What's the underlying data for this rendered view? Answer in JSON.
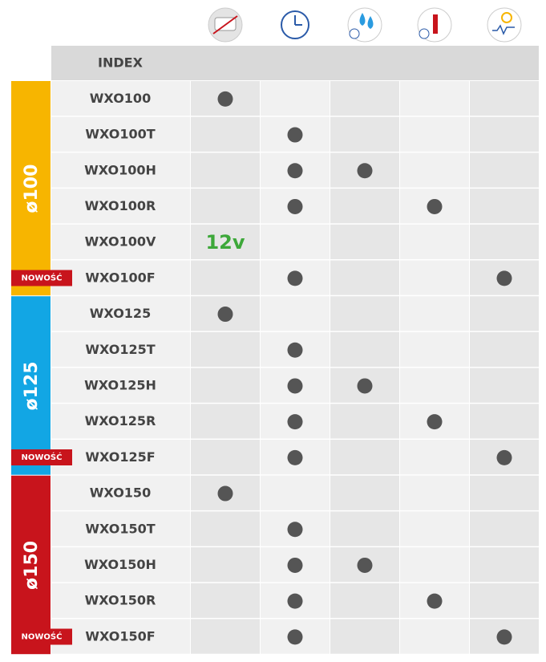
{
  "header": {
    "title": "INDEX"
  },
  "groups": [
    {
      "label": "ø100",
      "color": "#f7b500",
      "rows": [
        {
          "index": "WXO100",
          "cells": [
            true,
            false,
            false,
            false,
            false
          ]
        },
        {
          "index": "WXO100T",
          "cells": [
            false,
            true,
            false,
            false,
            false
          ]
        },
        {
          "index": "WXO100H",
          "cells": [
            false,
            true,
            true,
            false,
            false
          ]
        },
        {
          "index": "WXO100R",
          "cells": [
            false,
            true,
            false,
            true,
            false
          ]
        },
        {
          "index": "WXO100V",
          "cells": [
            "12v",
            false,
            false,
            false,
            false
          ]
        },
        {
          "index": "WXO100F",
          "badge": "NOWOŚĆ",
          "cells": [
            false,
            true,
            false,
            false,
            true
          ]
        }
      ]
    },
    {
      "label": "ø125",
      "color": "#12a6e4",
      "rows": [
        {
          "index": "WXO125",
          "cells": [
            true,
            false,
            false,
            false,
            false
          ]
        },
        {
          "index": "WXO125T",
          "cells": [
            false,
            true,
            false,
            false,
            false
          ]
        },
        {
          "index": "WXO125H",
          "cells": [
            false,
            true,
            true,
            false,
            false
          ]
        },
        {
          "index": "WXO125R",
          "cells": [
            false,
            true,
            false,
            true,
            false
          ]
        },
        {
          "index": "WXO125F",
          "badge": "NOWOŚĆ",
          "cells": [
            false,
            true,
            false,
            false,
            true
          ]
        }
      ]
    },
    {
      "label": "ø150",
      "color": "#c8141c",
      "rows": [
        {
          "index": "WXO150",
          "cells": [
            true,
            false,
            false,
            false,
            false
          ]
        },
        {
          "index": "WXO150T",
          "cells": [
            false,
            true,
            false,
            false,
            false
          ]
        },
        {
          "index": "WXO150H",
          "cells": [
            false,
            true,
            true,
            false,
            false
          ]
        },
        {
          "index": "WXO150R",
          "cells": [
            false,
            true,
            false,
            true,
            false
          ]
        },
        {
          "index": "WXO150F",
          "badge": "NOWOŚĆ",
          "cells": [
            false,
            true,
            false,
            false,
            true
          ]
        }
      ]
    }
  ]
}
